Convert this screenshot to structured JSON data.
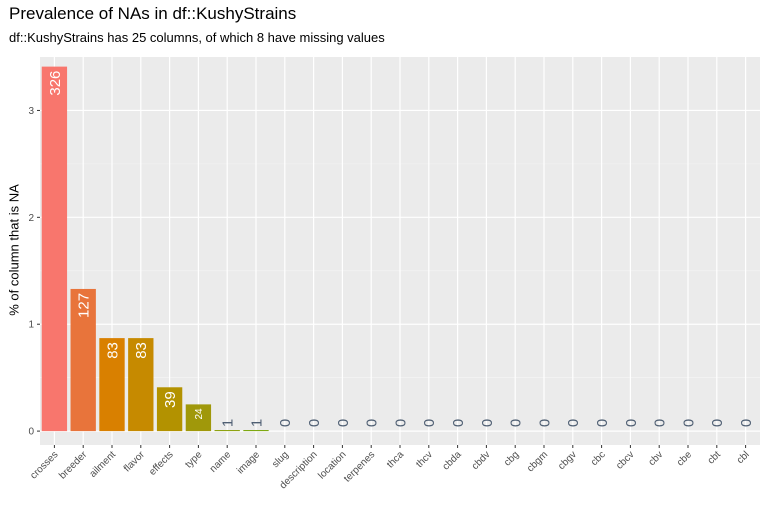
{
  "title": "Prevalence of NAs in df::KushyStrains",
  "subtitle": "df::KushyStrains has 25 columns, of which 8 have missing values",
  "chart_data": {
    "type": "bar",
    "title": "Prevalence of NAs in df::KushyStrains",
    "subtitle": "df::KushyStrains has 25 columns, of which 8 have missing values",
    "xlabel": "",
    "ylabel": "% of column that is NA",
    "ylim": [
      0,
      3.5
    ],
    "yticks": [
      0,
      1,
      2,
      3
    ],
    "grid": true,
    "categories": [
      "crosses",
      "breeder",
      "ailment",
      "flavor",
      "effects",
      "type",
      "name",
      "image",
      "slug",
      "description",
      "location",
      "terpenes",
      "thca",
      "thcv",
      "cbda",
      "cbdv",
      "cbg",
      "cbgm",
      "cbgv",
      "cbc",
      "cbcv",
      "cbv",
      "cbe",
      "cbt",
      "cbl"
    ],
    "values": [
      3.41,
      1.33,
      0.87,
      0.87,
      0.41,
      0.25,
      0.01,
      0.01,
      0,
      0,
      0,
      0,
      0,
      0,
      0,
      0,
      0,
      0,
      0,
      0,
      0,
      0,
      0,
      0,
      0
    ],
    "labels": [
      "326",
      "127",
      "83",
      "83",
      "39",
      "24",
      "1",
      "1",
      "0",
      "0",
      "0",
      "0",
      "0",
      "0",
      "0",
      "0",
      "0",
      "0",
      "0",
      "0",
      "0",
      "0",
      "0",
      "0",
      "0"
    ],
    "colors": [
      "#f8766d",
      "#e8743b",
      "#d98000",
      "#c68a00",
      "#b39200",
      "#a0980a",
      "#8ba00a",
      "#7aa50a",
      "#6aa80a",
      "#59ab0a",
      "#49ad0a",
      "#3aaf0a",
      "#2db10a",
      "#22b20a",
      "#17b30a",
      "#0eb40a",
      "#05b50a",
      "#00b50a",
      "#00b50a",
      "#00b50a",
      "#00b50a",
      "#00b50a",
      "#00b50a",
      "#00b50a",
      "#00b50a"
    ],
    "label_color_inside": "#ffffff",
    "label_color_outside": "#4f5f73",
    "panel_background": "#ebebeb"
  }
}
